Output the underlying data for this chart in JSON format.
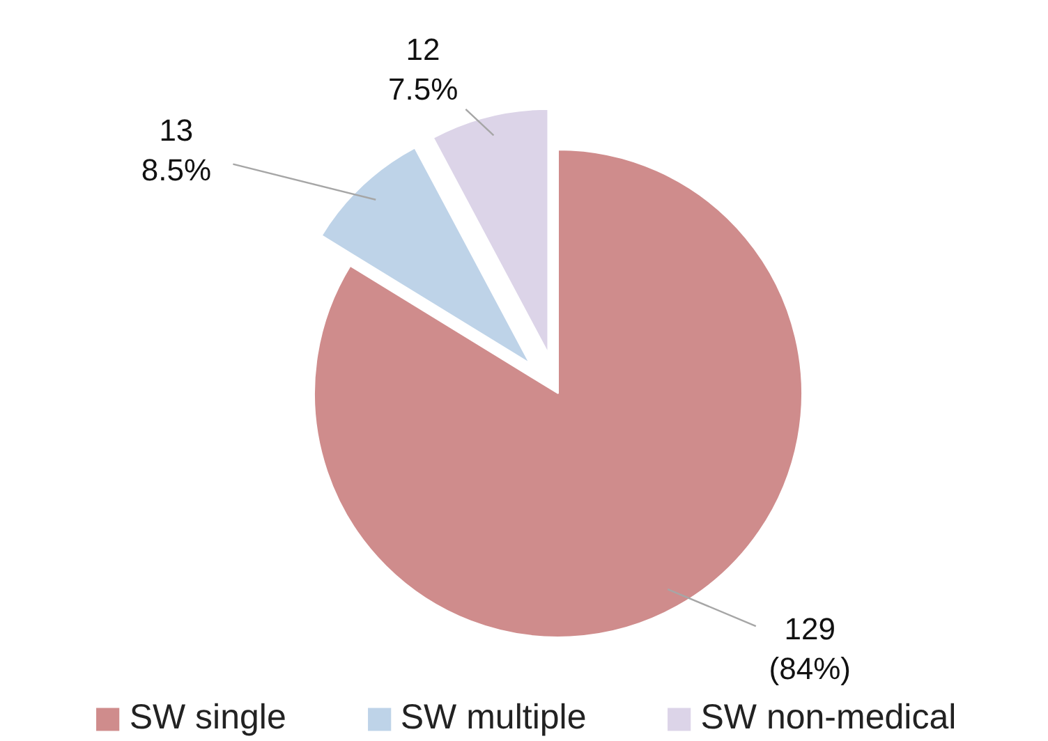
{
  "chart_data": {
    "type": "pie",
    "categories": [
      "SW single",
      "SW multiple",
      "SW non-medical"
    ],
    "values": [
      129,
      13,
      12
    ],
    "colors": [
      "#cf8c8c",
      "#bed3e8",
      "#dcd4e8"
    ],
    "value_labels": [
      "129\n(84%)",
      "13\n8.5%",
      "12\n7.5%"
    ],
    "legend": "bottom"
  }
}
